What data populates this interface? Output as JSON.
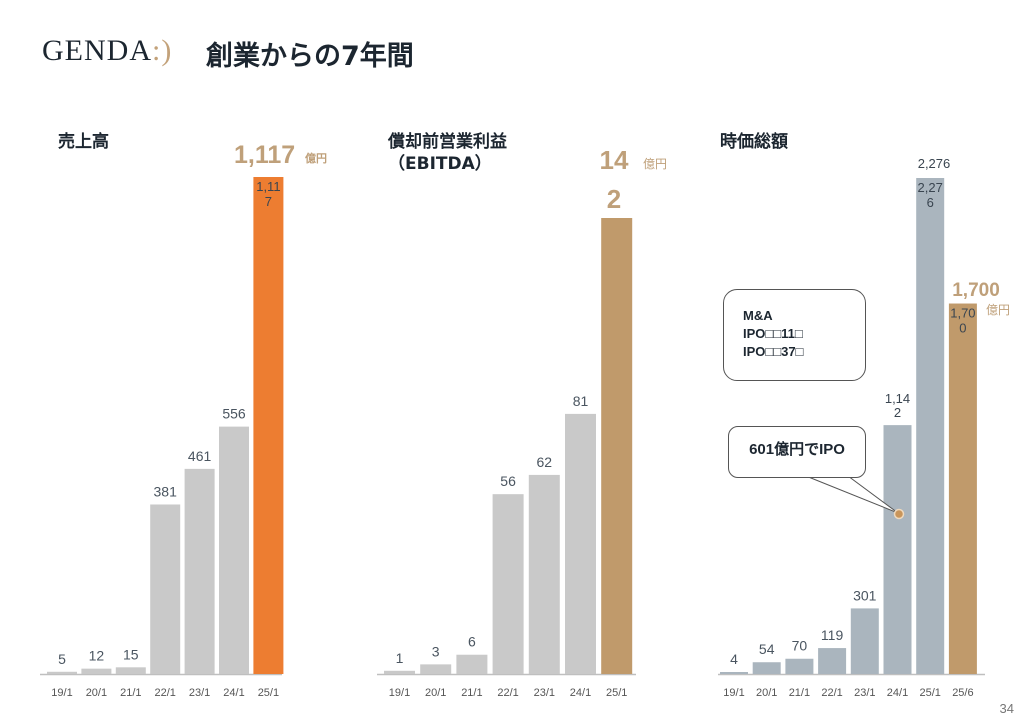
{
  "header": {
    "logo_text": "GENDA",
    "logo_smile": ":)",
    "title": "創業からの7年間"
  },
  "page_number": "34",
  "colors": {
    "gray_bar": "#c9c9c9",
    "blue_gray_bar": "#aab5be",
    "orange": "#ed7d31",
    "gold": "#c09a6b",
    "highlight_text": "#bfa07a",
    "label_text": "#4a5560"
  },
  "chart_data": [
    {
      "type": "bar",
      "title": "売上高",
      "categories": [
        "19/1",
        "20/1",
        "21/1",
        "22/1",
        "23/1",
        "24/1",
        "25/1"
      ],
      "values": [
        5,
        12,
        15,
        381,
        461,
        556,
        1117
      ],
      "labels": [
        "5",
        "12",
        "15",
        "381",
        "461",
        "556",
        "1,11\n7"
      ],
      "highlight": {
        "value": "1,117",
        "unit": "億円"
      },
      "bar_colors": [
        "gray_bar",
        "gray_bar",
        "gray_bar",
        "gray_bar",
        "gray_bar",
        "gray_bar",
        "orange"
      ],
      "ylim": [
        0,
        1117
      ]
    },
    {
      "type": "bar",
      "title": "償却前営業利益",
      "title2": "（EBITDA）",
      "categories": [
        "19/1",
        "20/1",
        "21/1",
        "22/1",
        "23/1",
        "24/1",
        "25/1"
      ],
      "values": [
        1,
        3,
        6,
        56,
        62,
        81,
        142
      ],
      "labels": [
        "1",
        "3",
        "6",
        "56",
        "62",
        "81",
        ""
      ],
      "highlight": {
        "value": "14",
        "value2": "2",
        "unit": "億円"
      },
      "bar_colors": [
        "gray_bar",
        "gray_bar",
        "gray_bar",
        "gray_bar",
        "gray_bar",
        "gray_bar",
        "gold"
      ],
      "ylim": [
        0,
        142
      ]
    },
    {
      "type": "bar",
      "title": "時価総額",
      "categories": [
        "19/1",
        "20/1",
        "21/1",
        "22/1",
        "23/1",
        "24/1",
        "25/1",
        "25/6"
      ],
      "values": [
        4,
        54,
        70,
        119,
        301,
        1142,
        2276,
        1700
      ],
      "labels": [
        "4",
        "54",
        "70",
        "119",
        "301",
        "1,14\n2",
        "2,27\n6",
        "1,70\n0"
      ],
      "top_label": "2,276",
      "highlight": {
        "value": "1,700",
        "unit": "億円"
      },
      "bar_colors": [
        "blue_gray_bar",
        "blue_gray_bar",
        "blue_gray_bar",
        "blue_gray_bar",
        "blue_gray_bar",
        "blue_gray_bar",
        "blue_gray_bar",
        "gold"
      ],
      "ylim": [
        0,
        2276
      ],
      "callouts": {
        "box1": [
          "M&A",
          "IPO□□11□",
          "IPO□□37□"
        ],
        "box2": "601億円でIPO"
      }
    }
  ]
}
